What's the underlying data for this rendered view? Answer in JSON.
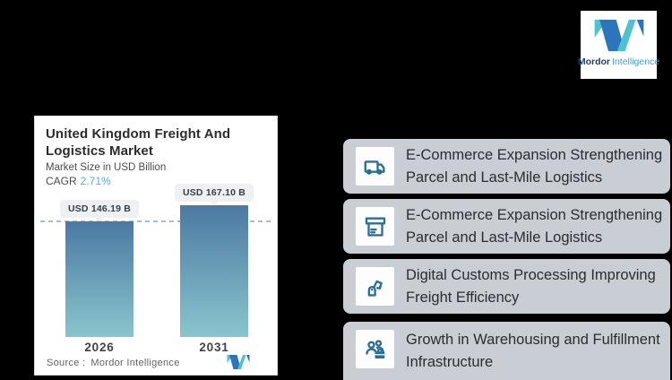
{
  "canvas": {
    "background": "#000000"
  },
  "brand": {
    "name_bold": "Mordor",
    "name_light": "Intelligence",
    "logo_teal": "#4ec3cd",
    "logo_blue": "#2e74ba"
  },
  "chart_card": {
    "title_line1": "United Kingdom Freight And",
    "title_line2": "Logistics Market",
    "subtitle": "Market Size in USD Billion",
    "cagr_label": "CAGR",
    "cagr_value": "2.71%",
    "source_label": "Source :",
    "source_value": "Mordor Intelligence"
  },
  "chart_data": {
    "type": "bar",
    "title": "United Kingdom Freight And Logistics Market",
    "ylabel": "Market Size in USD Billion",
    "cagr_percent": 2.71,
    "categories": [
      "2026",
      "2031"
    ],
    "values": [
      146.19,
      167.1
    ],
    "value_labels": [
      "USD 146.19 B",
      "USD 167.10 B"
    ],
    "unit": "USD Billion",
    "reference_line": {
      "value": 146.19,
      "style": "dashed"
    },
    "bar_color_top": "#4c79a2",
    "bar_color_bottom": "#89c5cd",
    "grid": "off",
    "legend": "none"
  },
  "highlights": [
    {
      "icon": "delivery-truck-icon",
      "line1": "E-Commerce Expansion Strengthening",
      "line2": "Parcel and Last-Mile Logistics"
    },
    {
      "icon": "storage-box-icon",
      "line1": "E-Commerce Expansion Strengthening",
      "line2": "Parcel and Last-Mile Logistics"
    },
    {
      "icon": "robotic-arm-icon",
      "line1": "Digital Customs Processing Improving",
      "line2": "Freight Efficiency"
    },
    {
      "icon": "people-briefcase-icon",
      "line1": "Growth in Warehousing and Fulfillment",
      "line2": "Infrastructure"
    }
  ],
  "highlight_style": {
    "box_color": "#c9cdd4",
    "icon_color": "#2c6f95",
    "text_color": "#2b2d30"
  }
}
